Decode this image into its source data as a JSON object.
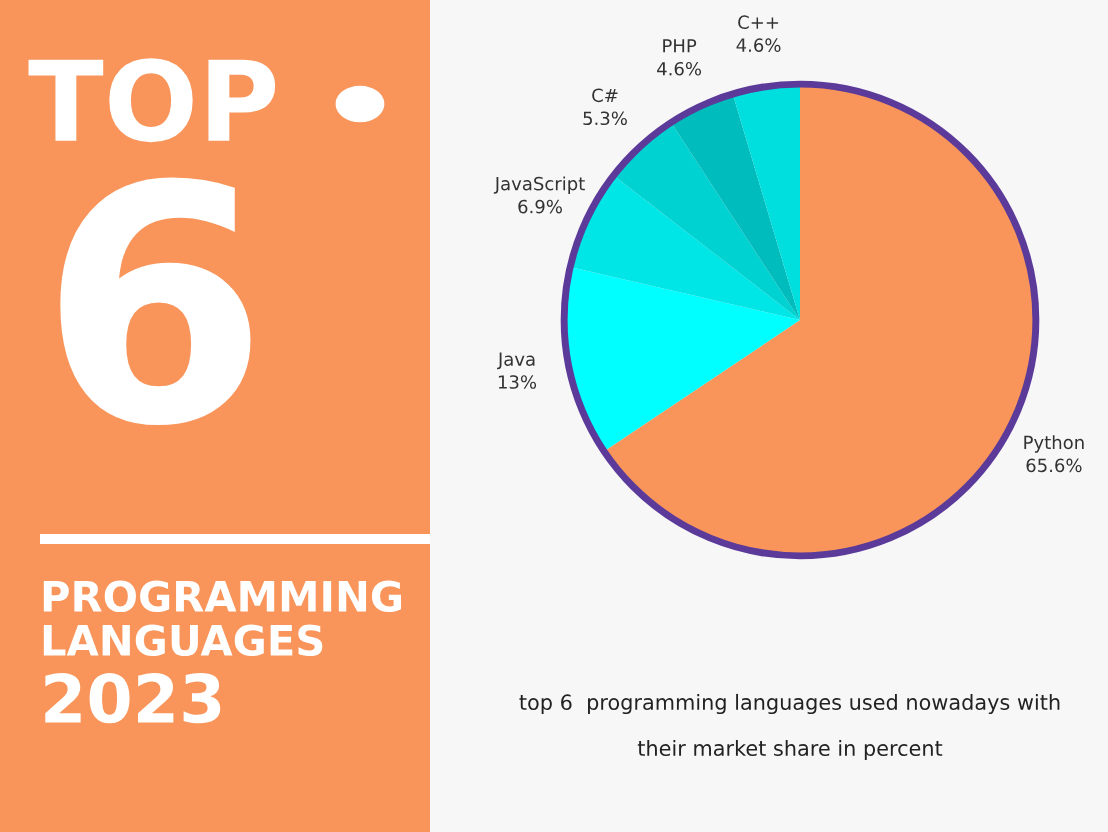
{
  "chart_data": {
    "type": "pie",
    "title": "TOP 6",
    "subtitle": "PROGRAMMING LANGUAGES 2023",
    "categories": [
      "Python",
      "Java",
      "JavaScript",
      "C#",
      "PHP",
      "C++"
    ],
    "values": [
      65.6,
      13,
      6.9,
      5.3,
      4.6,
      4.6
    ],
    "value_labels": [
      "65.6%",
      "13%",
      "6.9%",
      "5.3%",
      "4.6%",
      "4.6%"
    ],
    "colors": [
      "#f9955a",
      "#00ffff",
      "#00e5e5",
      "#00d2d2",
      "#00bcbc",
      "#00dede"
    ],
    "annotations": [
      "top 6  programming languages used nowadays with",
      "their market share in percent"
    ]
  }
}
